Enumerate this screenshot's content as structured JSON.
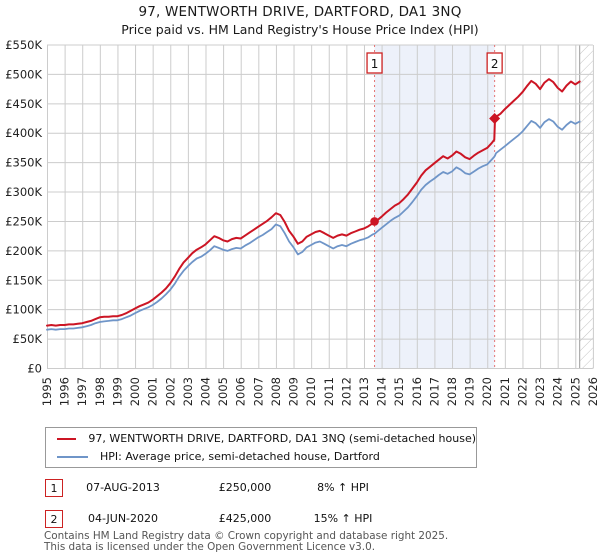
{
  "title": "97, WENTWORTH DRIVE, DARTFORD, DA1 3NQ",
  "subtitle": "Price paid vs. HM Land Registry's House Price Index (HPI)",
  "legend": [
    {
      "label": "97, WENTWORTH DRIVE, DARTFORD, DA1 3NQ (semi-detached house)",
      "color": "#cc1524"
    },
    {
      "label": "HPI: Average price, semi-detached house, Dartford",
      "color": "#6f95c8"
    }
  ],
  "sales": [
    {
      "n": "1",
      "date": "07-AUG-2013",
      "price": "£250,000",
      "hpi": "8% ↑ HPI",
      "year": 2013.6,
      "value": 250,
      "marker": "circle"
    },
    {
      "n": "2",
      "date": "04-JUN-2020",
      "price": "£425,000",
      "hpi": "15% ↑ HPI",
      "year": 2020.42,
      "value": 425,
      "marker": "diamond"
    }
  ],
  "footer": [
    "Contains HM Land Registry data © Crown copyright and database right 2025.",
    "This data is licensed under the Open Government Licence v3.0."
  ],
  "chart_data": {
    "type": "line",
    "xlabel": "",
    "ylabel": "",
    "xlim": [
      1995,
      2026
    ],
    "ylim_gbp_thousands": [
      0,
      550
    ],
    "grid": true,
    "y_tick_labels": [
      "£0",
      "£50K",
      "£100K",
      "£150K",
      "£200K",
      "£250K",
      "£300K",
      "£350K",
      "£400K",
      "£450K",
      "£500K",
      "£550K"
    ],
    "x_tick_years": [
      1995,
      1996,
      1997,
      1998,
      1999,
      2000,
      2001,
      2002,
      2003,
      2004,
      2005,
      2006,
      2007,
      2008,
      2009,
      2010,
      2011,
      2012,
      2013,
      2014,
      2015,
      2016,
      2017,
      2018,
      2019,
      2020,
      2021,
      2022,
      2023,
      2024,
      2025,
      2026
    ],
    "shaded_span_x": [
      2013.6,
      2020.42
    ],
    "hatched_future_span_x": [
      2025.25,
      2026
    ],
    "sale_line_color": "#e57373",
    "grid_color": "#cccccc",
    "x": [
      1995,
      1995.25,
      1995.5,
      1995.75,
      1996,
      1996.25,
      1996.5,
      1996.75,
      1997,
      1997.25,
      1997.5,
      1997.75,
      1998,
      1998.25,
      1998.5,
      1998.75,
      1999,
      1999.25,
      1999.5,
      1999.75,
      2000,
      2000.25,
      2000.5,
      2000.75,
      2001,
      2001.25,
      2001.5,
      2001.75,
      2002,
      2002.25,
      2002.5,
      2002.75,
      2003,
      2003.25,
      2003.5,
      2003.75,
      2004,
      2004.25,
      2004.5,
      2004.75,
      2005,
      2005.25,
      2005.5,
      2005.75,
      2006,
      2006.25,
      2006.5,
      2006.75,
      2007,
      2007.25,
      2007.5,
      2007.75,
      2008,
      2008.25,
      2008.5,
      2008.75,
      2009,
      2009.25,
      2009.5,
      2009.75,
      2010,
      2010.25,
      2010.5,
      2010.75,
      2011,
      2011.25,
      2011.5,
      2011.75,
      2012,
      2012.25,
      2012.5,
      2012.75,
      2013,
      2013.25,
      2013.5,
      2013.6,
      2013.75,
      2014,
      2014.25,
      2014.5,
      2014.75,
      2015,
      2015.25,
      2015.5,
      2015.75,
      2016,
      2016.25,
      2016.5,
      2016.75,
      2017,
      2017.25,
      2017.5,
      2017.75,
      2018,
      2018.25,
      2018.5,
      2018.75,
      2019,
      2019.25,
      2019.5,
      2019.75,
      2020,
      2020.25,
      2020.4,
      2020.44,
      2020.5,
      2020.75,
      2021,
      2021.25,
      2021.5,
      2021.75,
      2022,
      2022.25,
      2022.5,
      2022.75,
      2023,
      2023.25,
      2023.5,
      2023.75,
      2024,
      2024.25,
      2024.5,
      2024.75,
      2025,
      2025.25
    ],
    "series": [
      {
        "name": "97, WENTWORTH DRIVE, DARTFORD, DA1 3NQ (semi-detached house)",
        "color": "#cc1524",
        "stroke_width": 2,
        "values_gbp_thousands": [
          73,
          74,
          73,
          74,
          74,
          75,
          75,
          76,
          77,
          79,
          81,
          84,
          87,
          88,
          88,
          89,
          89,
          91,
          94,
          98,
          102,
          106,
          109,
          112,
          117,
          123,
          129,
          136,
          145,
          156,
          169,
          180,
          188,
          196,
          202,
          206,
          211,
          218,
          225,
          222,
          218,
          216,
          220,
          222,
          221,
          226,
          231,
          236,
          241,
          246,
          251,
          257,
          264,
          261,
          249,
          234,
          224,
          212,
          216,
          224,
          228,
          232,
          234,
          230,
          226,
          222,
          226,
          228,
          226,
          230,
          233,
          236,
          238,
          242,
          247,
          250,
          252,
          258,
          265,
          271,
          277,
          281,
          288,
          296,
          306,
          316,
          328,
          337,
          343,
          349,
          355,
          361,
          357,
          362,
          369,
          365,
          359,
          356,
          362,
          367,
          371,
          375,
          383,
          389,
          425,
          428,
          433,
          441,
          448,
          455,
          462,
          470,
          480,
          489,
          484,
          475,
          486,
          492,
          487,
          477,
          471,
          481,
          488,
          483,
          488
        ]
      },
      {
        "name": "HPI: Average price, semi-detached house, Dartford",
        "color": "#6f95c8",
        "stroke_width": 1.8,
        "values_gbp_thousands": [
          66,
          67,
          66,
          67,
          67,
          68,
          68,
          69,
          70,
          72,
          74,
          77,
          79,
          80,
          81,
          82,
          82,
          84,
          87,
          90,
          94,
          98,
          101,
          104,
          108,
          113,
          119,
          126,
          134,
          144,
          156,
          166,
          174,
          181,
          187,
          190,
          195,
          201,
          208,
          205,
          202,
          200,
          203,
          205,
          204,
          209,
          213,
          218,
          223,
          227,
          232,
          237,
          245,
          242,
          230,
          216,
          206,
          194,
          198,
          206,
          210,
          214,
          216,
          212,
          208,
          204,
          208,
          210,
          208,
          212,
          215,
          218,
          220,
          223,
          228,
          229,
          233,
          239,
          245,
          251,
          256,
          260,
          267,
          274,
          283,
          293,
          304,
          312,
          318,
          323,
          329,
          334,
          331,
          335,
          342,
          338,
          332,
          330,
          335,
          340,
          344,
          347,
          355,
          360,
          362,
          366,
          372,
          378,
          384,
          390,
          396,
          403,
          412,
          421,
          417,
          409,
          419,
          424,
          420,
          411,
          406,
          414,
          420,
          416,
          420
        ]
      }
    ]
  }
}
